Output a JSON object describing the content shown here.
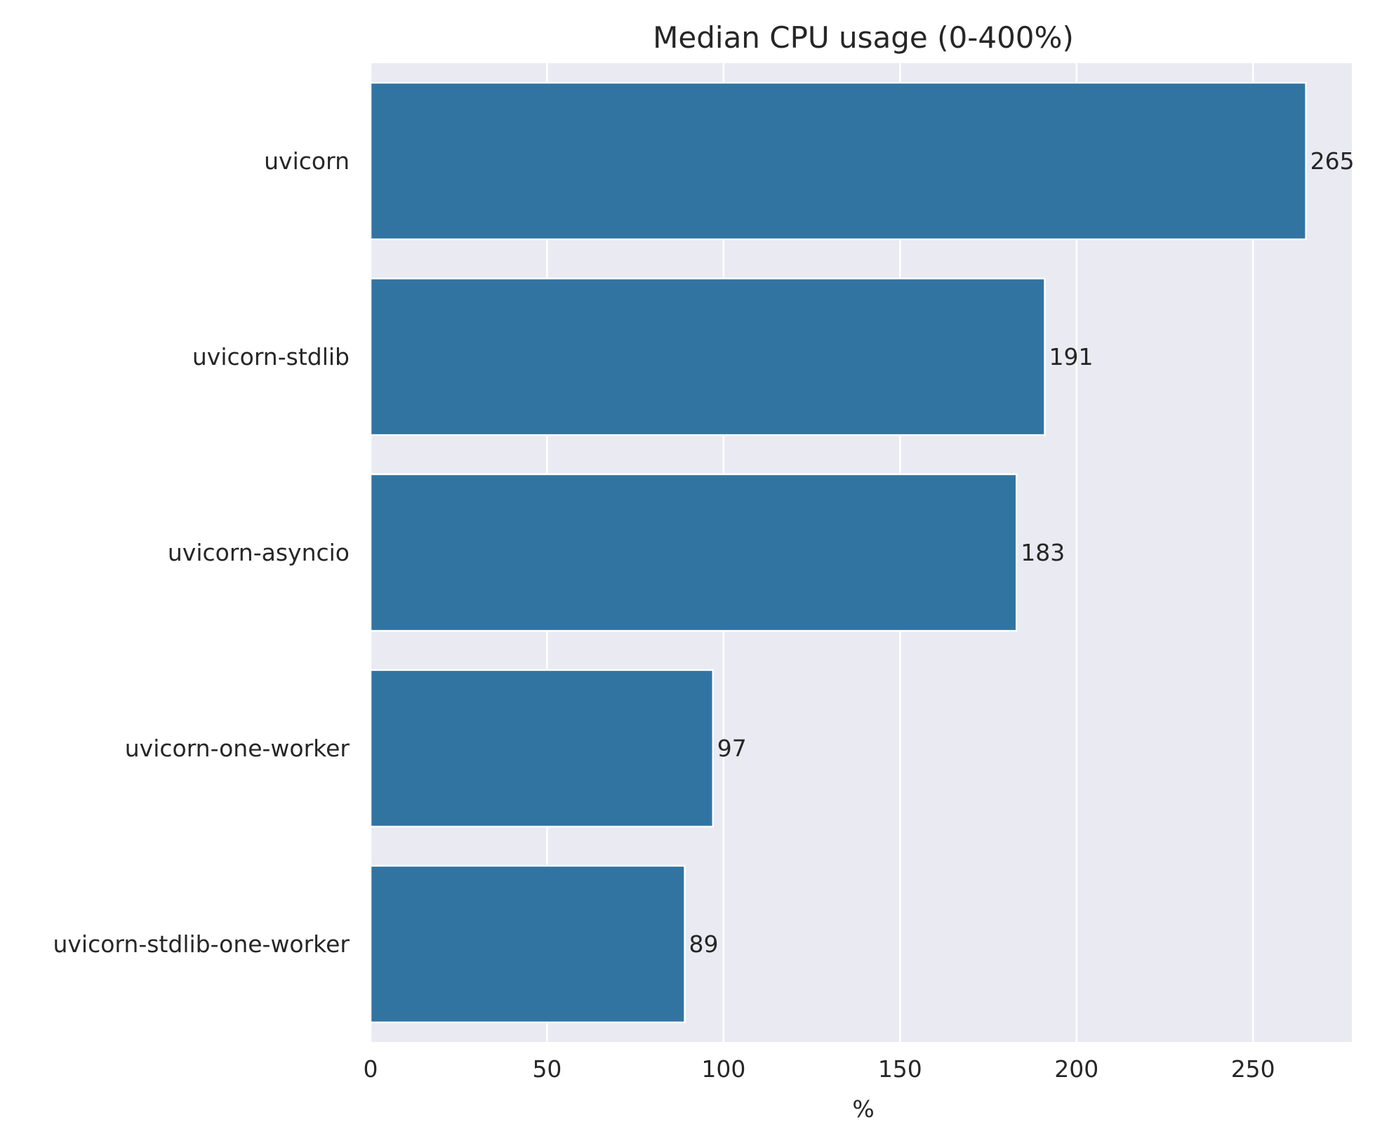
{
  "chart_data": {
    "type": "bar",
    "orientation": "horizontal",
    "title": "Median CPU usage (0-400%)",
    "xlabel": "%",
    "ylabel": "",
    "categories": [
      "uvicorn",
      "uvicorn-stdlib",
      "uvicorn-asyncio",
      "uvicorn-one-worker",
      "uvicorn-stdlib-one-worker"
    ],
    "values": [
      265,
      191,
      183,
      97,
      89
    ],
    "data_labels": [
      "265",
      "191",
      "183",
      "97",
      "89"
    ],
    "xlim": [
      0,
      278
    ],
    "xticks": [
      0,
      50,
      100,
      150,
      200,
      250
    ],
    "xtick_labels": [
      "0",
      "50",
      "100",
      "150",
      "200",
      "250"
    ],
    "grid": true,
    "bar_color": "#3274a1",
    "background_color": "#eaeaf2",
    "grid_color": "#ffffff"
  }
}
